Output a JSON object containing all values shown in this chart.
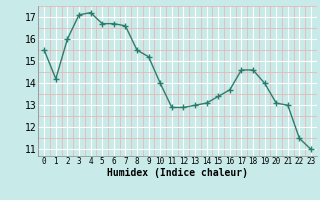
{
  "x": [
    0,
    1,
    2,
    3,
    4,
    5,
    6,
    7,
    8,
    9,
    10,
    11,
    12,
    13,
    14,
    15,
    16,
    17,
    18,
    19,
    20,
    21,
    22,
    23
  ],
  "y": [
    15.5,
    14.2,
    16.0,
    17.1,
    17.2,
    16.7,
    16.7,
    16.6,
    15.5,
    15.2,
    14.0,
    12.9,
    12.9,
    13.0,
    13.1,
    13.4,
    13.7,
    14.6,
    14.6,
    14.0,
    13.1,
    13.0,
    11.5,
    11.0
  ],
  "xlabel": "Humidex (Indice chaleur)",
  "line_color": "#2d7d6e",
  "bg_color": "#c8eae8",
  "grid_major_color": "#ffffff",
  "grid_minor_color": "#e8b8b8",
  "ylim": [
    10.7,
    17.5
  ],
  "yticks": [
    11,
    12,
    13,
    14,
    15,
    16,
    17
  ],
  "xticks": [
    0,
    1,
    2,
    3,
    4,
    5,
    6,
    7,
    8,
    9,
    10,
    11,
    12,
    13,
    14,
    15,
    16,
    17,
    18,
    19,
    20,
    21,
    22,
    23
  ],
  "xlim": [
    -0.5,
    23.5
  ]
}
